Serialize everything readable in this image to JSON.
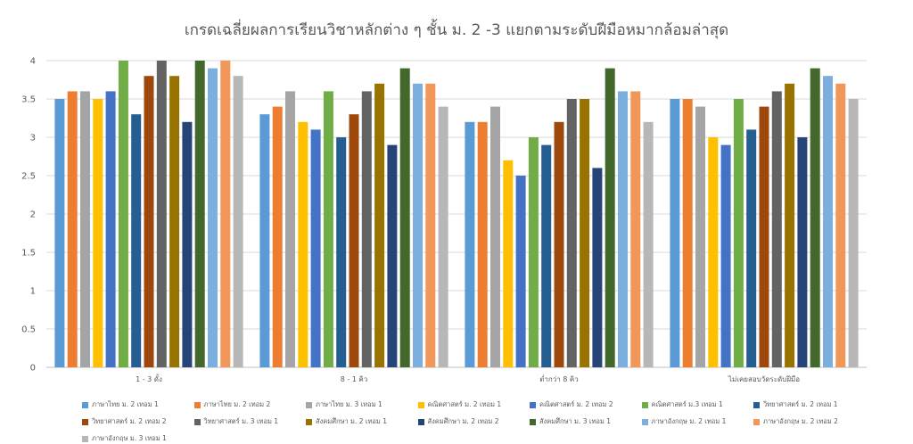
{
  "chart_data": {
    "type": "bar",
    "title": "เกรดเฉลี่ยผลการเรียนวิชาหลักต่าง ๆ ชั้น ม. 2 -3 แยกตามระดับฝีมือหมากล้อมล่าสุด",
    "categories": [
      "1 - 3 ดั้ง",
      "8 - 1 คิว",
      "ต่ำกว่า 8 คิว",
      "ไม่เคยสอบวัดระดับฝีมือ"
    ],
    "ylim": [
      0,
      4
    ],
    "yticks": [
      "0",
      "0.5",
      "1",
      "1.5",
      "2",
      "2.5",
      "3",
      "3.5",
      "4"
    ],
    "grid": true,
    "legend_position": "bottom",
    "series": [
      {
        "name": "ภาษาไทย ม. 2 เทอม 1",
        "color": "#5B9BD5",
        "values": [
          3.5,
          3.3,
          3.2,
          3.5
        ]
      },
      {
        "name": "ภาษาไทย ม. 2 เทอม 2",
        "color": "#ED7D31",
        "values": [
          3.6,
          3.4,
          3.2,
          3.5
        ]
      },
      {
        "name": "ภาษาไทย ม. 3 เทอม 1",
        "color": "#A5A5A5",
        "values": [
          3.6,
          3.6,
          3.4,
          3.4
        ]
      },
      {
        "name": "คณิตศาสตร์ ม. 2 เทอม 1",
        "color": "#FFC000",
        "values": [
          3.5,
          3.2,
          2.7,
          3.0
        ]
      },
      {
        "name": "คณิตศาสตร์ ม. 2 เทอม 2",
        "color": "#4472C4",
        "values": [
          3.6,
          3.1,
          2.5,
          2.9
        ]
      },
      {
        "name": "คณิตศาสตร์ ม.3 เทอม 1",
        "color": "#70AD47",
        "values": [
          4.0,
          3.6,
          3.0,
          3.5
        ]
      },
      {
        "name": "วิทยาศาสตร์ ม. 2 เทอม 1",
        "color": "#255E91",
        "values": [
          3.3,
          3.0,
          2.9,
          3.1
        ]
      },
      {
        "name": "วิทยาศาสตร์ ม. 2 เทอม 2",
        "color": "#9E480E",
        "values": [
          3.8,
          3.3,
          3.2,
          3.4
        ]
      },
      {
        "name": "วิทยาศาสตร์ ม. 3 เทอม 1",
        "color": "#636363",
        "values": [
          4.0,
          3.6,
          3.5,
          3.6
        ]
      },
      {
        "name": "สังคมศึกษา ม. 2 เทอม 1",
        "color": "#997300",
        "values": [
          3.8,
          3.7,
          3.5,
          3.7
        ]
      },
      {
        "name": "สังคมศึกษา ม. 2 เทอม 2",
        "color": "#264478",
        "values": [
          3.2,
          2.9,
          2.6,
          3.0
        ]
      },
      {
        "name": "สังคมศึกษา ม. 3 เทอม 1",
        "color": "#43682B",
        "values": [
          4.0,
          3.9,
          3.9,
          3.9
        ]
      },
      {
        "name": "ภาษาอังกฤษ ม. 2 เทอม 1",
        "color": "#7CAFDD",
        "values": [
          3.9,
          3.7,
          3.6,
          3.8
        ]
      },
      {
        "name": "ภาษาอังกฤษ ม. 2 เทอม 2",
        "color": "#F1975A",
        "values": [
          4.0,
          3.7,
          3.6,
          3.7
        ]
      },
      {
        "name": "ภาษาอังกฤษ ม. 3 เทอม 1",
        "color": "#B7B7B7",
        "values": [
          3.8,
          3.4,
          3.2,
          3.5
        ]
      }
    ]
  }
}
